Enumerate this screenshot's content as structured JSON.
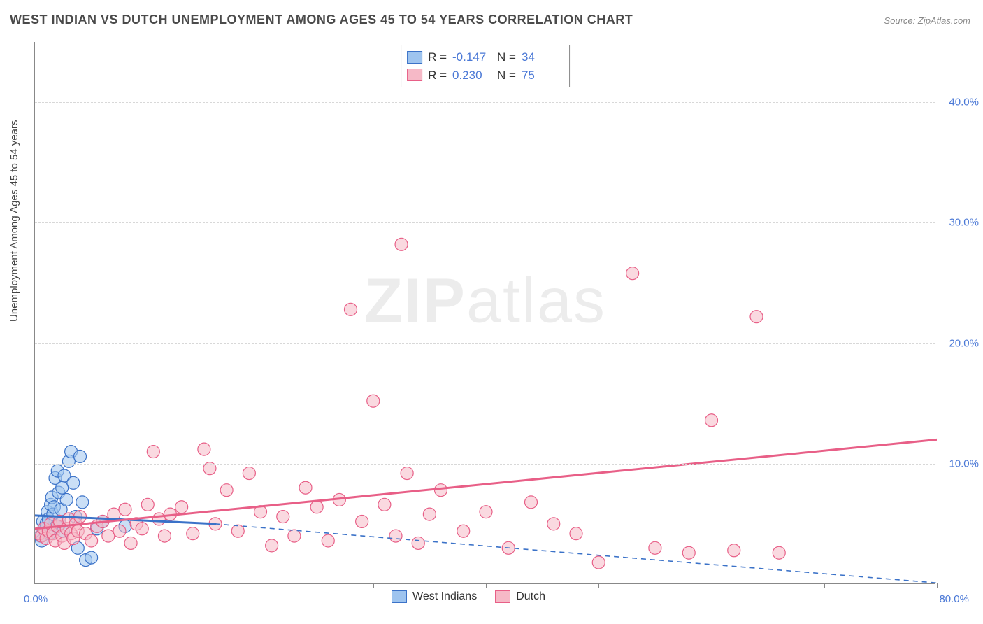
{
  "title": "WEST INDIAN VS DUTCH UNEMPLOYMENT AMONG AGES 45 TO 54 YEARS CORRELATION CHART",
  "source": "Source: ZipAtlas.com",
  "y_axis_label": "Unemployment Among Ages 45 to 54 years",
  "watermark_bold": "ZIP",
  "watermark_rest": "atlas",
  "chart": {
    "type": "scatter",
    "xlim": [
      0,
      80
    ],
    "ylim": [
      0,
      45
    ],
    "x_ticks": [
      10,
      20,
      30,
      40,
      50,
      60,
      70,
      80
    ],
    "y_ticks": [
      10,
      20,
      30,
      40
    ],
    "y_tick_labels": [
      "10.0%",
      "20.0%",
      "30.0%",
      "40.0%"
    ],
    "x_min_label": "0.0%",
    "x_max_label": "80.0%",
    "grid_color": "#d8d8d8",
    "axis_color": "#888888",
    "tick_label_color": "#4a78d6",
    "plot_bg": "#ffffff",
    "marker_radius": 9,
    "marker_stroke_width": 1.2,
    "line_width": 3,
    "dash_width": 1.6,
    "series": [
      {
        "name": "West Indians",
        "fill": "#9ec4ef",
        "stroke": "#3b72c8",
        "fill_opacity": 0.55,
        "R_label": "R =",
        "R": "-0.147",
        "N_label": "N =",
        "N": "34",
        "trend": {
          "x1": 0,
          "y1": 5.7,
          "x2": 16,
          "y2": 5.0,
          "solid": true
        },
        "extrapolate": {
          "x1": 16,
          "y1": 5.0,
          "x2": 80,
          "y2": 0.1,
          "dash": "7,6"
        },
        "points": [
          [
            0.5,
            4.0
          ],
          [
            0.6,
            3.6
          ],
          [
            0.7,
            5.2
          ],
          [
            0.8,
            4.6
          ],
          [
            1.0,
            5.0
          ],
          [
            1.1,
            6.0
          ],
          [
            1.2,
            5.4
          ],
          [
            1.3,
            4.2
          ],
          [
            1.4,
            6.6
          ],
          [
            1.5,
            7.2
          ],
          [
            1.6,
            5.8
          ],
          [
            1.7,
            6.4
          ],
          [
            1.8,
            8.8
          ],
          [
            1.9,
            4.8
          ],
          [
            2.0,
            9.4
          ],
          [
            2.1,
            7.6
          ],
          [
            2.2,
            5.0
          ],
          [
            2.3,
            6.2
          ],
          [
            2.4,
            8.0
          ],
          [
            2.5,
            4.4
          ],
          [
            2.6,
            9.0
          ],
          [
            2.8,
            7.0
          ],
          [
            3.0,
            10.2
          ],
          [
            3.2,
            11.0
          ],
          [
            3.4,
            8.4
          ],
          [
            3.6,
            5.6
          ],
          [
            3.8,
            3.0
          ],
          [
            4.0,
            10.6
          ],
          [
            4.2,
            6.8
          ],
          [
            4.5,
            2.0
          ],
          [
            5.0,
            2.2
          ],
          [
            5.5,
            4.6
          ],
          [
            6.0,
            5.2
          ],
          [
            8.0,
            4.8
          ]
        ]
      },
      {
        "name": "Dutch",
        "fill": "#f6b9c7",
        "stroke": "#e85f87",
        "fill_opacity": 0.55,
        "R_label": "R =",
        "R": "0.230",
        "N_label": "N =",
        "N": "75",
        "trend": {
          "x1": 0,
          "y1": 4.6,
          "x2": 80,
          "y2": 12.0,
          "solid": true
        },
        "points": [
          [
            0.4,
            4.2
          ],
          [
            0.6,
            4.0
          ],
          [
            0.8,
            4.6
          ],
          [
            1.0,
            3.8
          ],
          [
            1.2,
            4.4
          ],
          [
            1.4,
            5.0
          ],
          [
            1.6,
            4.2
          ],
          [
            1.8,
            3.6
          ],
          [
            2.0,
            4.8
          ],
          [
            2.2,
            5.2
          ],
          [
            2.4,
            4.0
          ],
          [
            2.6,
            3.4
          ],
          [
            2.8,
            4.6
          ],
          [
            3.0,
            5.4
          ],
          [
            3.2,
            4.2
          ],
          [
            3.4,
            3.8
          ],
          [
            3.6,
            5.0
          ],
          [
            3.8,
            4.4
          ],
          [
            4.0,
            5.6
          ],
          [
            4.5,
            4.2
          ],
          [
            5.0,
            3.6
          ],
          [
            5.5,
            4.8
          ],
          [
            6.0,
            5.2
          ],
          [
            6.5,
            4.0
          ],
          [
            7.0,
            5.8
          ],
          [
            7.5,
            4.4
          ],
          [
            8.0,
            6.2
          ],
          [
            8.5,
            3.4
          ],
          [
            9.0,
            5.0
          ],
          [
            9.5,
            4.6
          ],
          [
            10.0,
            6.6
          ],
          [
            10.5,
            11.0
          ],
          [
            11.0,
            5.4
          ],
          [
            11.5,
            4.0
          ],
          [
            12.0,
            5.8
          ],
          [
            13.0,
            6.4
          ],
          [
            14.0,
            4.2
          ],
          [
            15.0,
            11.2
          ],
          [
            15.5,
            9.6
          ],
          [
            16.0,
            5.0
          ],
          [
            17.0,
            7.8
          ],
          [
            18.0,
            4.4
          ],
          [
            19.0,
            9.2
          ],
          [
            20.0,
            6.0
          ],
          [
            21.0,
            3.2
          ],
          [
            22.0,
            5.6
          ],
          [
            23.0,
            4.0
          ],
          [
            24.0,
            8.0
          ],
          [
            25.0,
            6.4
          ],
          [
            26.0,
            3.6
          ],
          [
            27.0,
            7.0
          ],
          [
            28.0,
            22.8
          ],
          [
            29.0,
            5.2
          ],
          [
            30.0,
            15.2
          ],
          [
            31.0,
            6.6
          ],
          [
            32.0,
            4.0
          ],
          [
            32.5,
            28.2
          ],
          [
            33.0,
            9.2
          ],
          [
            34.0,
            3.4
          ],
          [
            35.0,
            5.8
          ],
          [
            36.0,
            7.8
          ],
          [
            38.0,
            4.4
          ],
          [
            40.0,
            6.0
          ],
          [
            42.0,
            3.0
          ],
          [
            44.0,
            6.8
          ],
          [
            46.0,
            5.0
          ],
          [
            48.0,
            4.2
          ],
          [
            50.0,
            1.8
          ],
          [
            53.0,
            25.8
          ],
          [
            55.0,
            3.0
          ],
          [
            58.0,
            2.6
          ],
          [
            60.0,
            13.6
          ],
          [
            62.0,
            2.8
          ],
          [
            64.0,
            22.2
          ],
          [
            66.0,
            2.6
          ]
        ]
      }
    ],
    "bottom_legend": [
      {
        "label": "West Indians",
        "fill": "#9ec4ef",
        "stroke": "#3b72c8"
      },
      {
        "label": "Dutch",
        "fill": "#f6b9c7",
        "stroke": "#e85f87"
      }
    ]
  }
}
